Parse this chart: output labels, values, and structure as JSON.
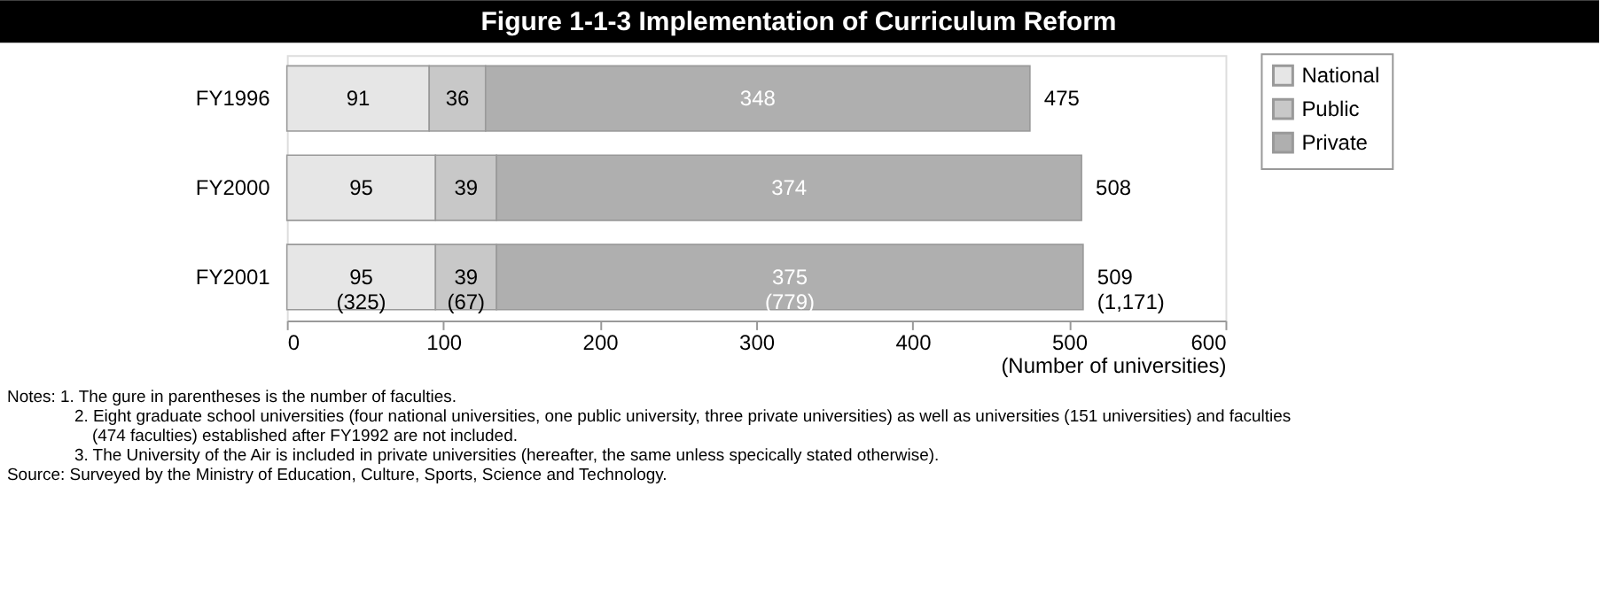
{
  "chart_data": {
    "type": "bar",
    "orientation": "horizontal",
    "stacked": true,
    "title": "Figure 1-1-3  Implementation of Curriculum Reform",
    "xlabel": "(Number of universities)",
    "categories": [
      "FY1996",
      "FY2000",
      "FY2001"
    ],
    "series": [
      {
        "name": "National",
        "color": "#e6e6e6",
        "values": [
          91,
          95,
          95
        ],
        "value_labels": [
          "91",
          "95",
          "95\n(325)"
        ]
      },
      {
        "name": "Public",
        "color": "#c8c8c8",
        "values": [
          36,
          39,
          39
        ],
        "value_labels": [
          "36",
          "39",
          "39\n(67)"
        ]
      },
      {
        "name": "Private",
        "color": "#afafaf",
        "values": [
          348,
          374,
          375
        ],
        "value_labels": [
          "348",
          "374",
          "375\n(779)"
        ]
      }
    ],
    "totals": [
      "475",
      "508",
      "509\n(1,171)"
    ],
    "xlim": [
      0,
      600
    ],
    "xticks": [
      0,
      100,
      200,
      300,
      400,
      500,
      600
    ],
    "grid": false,
    "legend": "top right",
    "annotations": [
      "Notes: 1. The gure in parentheses is the number of faculties.",
      "2. Eight graduate school universities (four national universities, one public university, three private universities) as well as universities (151 universities) and faculties (474 faculties) established after FY1992 are not included.",
      "3. The University of the Air is included in private universities (hereafter, the same unless specically stated otherwise).",
      "Source: Surveyed by the Ministry of Education, Culture, Sports, Science and Technology."
    ]
  }
}
